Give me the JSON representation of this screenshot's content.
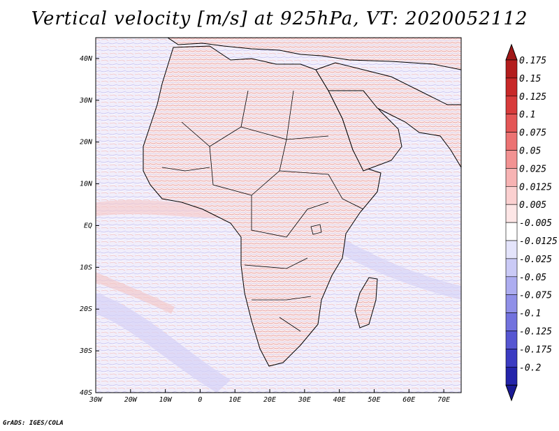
{
  "title": "Vertical velocity [m/s] at 925hPa, VT: 2020052112",
  "footer": "GrADS: IGES/COLA",
  "map": {
    "variable": "Vertical velocity",
    "units": "m/s",
    "level": "925hPa",
    "valid_time": "2020052112",
    "lon_range": [
      -30,
      75
    ],
    "lat_range": [
      -40,
      45
    ]
  },
  "x_ticks": [
    {
      "lon": -30,
      "label": "30W"
    },
    {
      "lon": -20,
      "label": "20W"
    },
    {
      "lon": -10,
      "label": "10W"
    },
    {
      "lon": 0,
      "label": "0"
    },
    {
      "lon": 10,
      "label": "10E"
    },
    {
      "lon": 20,
      "label": "20E"
    },
    {
      "lon": 30,
      "label": "30E"
    },
    {
      "lon": 40,
      "label": "40E"
    },
    {
      "lon": 50,
      "label": "50E"
    },
    {
      "lon": 60,
      "label": "60E"
    },
    {
      "lon": 70,
      "label": "70E"
    }
  ],
  "y_ticks": [
    {
      "lat": 40,
      "label": "40N"
    },
    {
      "lat": 30,
      "label": "30N"
    },
    {
      "lat": 20,
      "label": "20N"
    },
    {
      "lat": 10,
      "label": "10N"
    },
    {
      "lat": 0,
      "label": "EQ"
    },
    {
      "lat": -10,
      "label": "10S"
    },
    {
      "lat": -20,
      "label": "20S"
    },
    {
      "lat": -30,
      "label": "30S"
    },
    {
      "lat": -40,
      "label": "40S"
    }
  ],
  "colorbar": [
    {
      "label": "0.175",
      "color": "#b31d1d"
    },
    {
      "label": "0.15",
      "color": "#c82828"
    },
    {
      "label": "0.125",
      "color": "#d83b3b"
    },
    {
      "label": "0.1",
      "color": "#e45656"
    },
    {
      "label": "0.075",
      "color": "#ec7272"
    },
    {
      "label": "0.05",
      "color": "#f29292"
    },
    {
      "label": "0.025",
      "color": "#f7b3b3"
    },
    {
      "label": "0.0125",
      "color": "#fbd0d0"
    },
    {
      "label": "0.005",
      "color": "#fde6e6"
    },
    {
      "label": "-0.005",
      "color": "#ffffff"
    },
    {
      "label": "-0.0125",
      "color": "#e4e4fb"
    },
    {
      "label": "-0.025",
      "color": "#cacaf6"
    },
    {
      "label": "-0.05",
      "color": "#adadf0"
    },
    {
      "label": "-0.075",
      "color": "#9090e8"
    },
    {
      "label": "-0.1",
      "color": "#7272de"
    },
    {
      "label": "-0.125",
      "color": "#5656d2"
    },
    {
      "label": "-0.175",
      "color": "#3b3bc2"
    },
    {
      "label": "-0.2",
      "color": "#2424aa"
    }
  ],
  "colorbar_top_color": "#a01818",
  "colorbar_bottom_color": "#1a1a95"
}
